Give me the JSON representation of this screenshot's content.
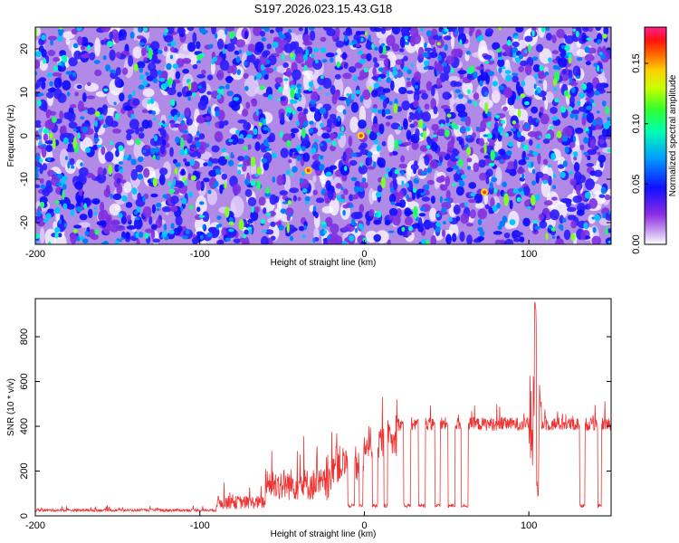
{
  "chart_data": [
    {
      "type": "heatmap",
      "title": "S197.2026.023.15.43.G18",
      "xlabel": "Height of straight line (km)",
      "ylabel": "Frequency (Hz)",
      "xlim": [
        -200,
        150
      ],
      "ylim": [
        -25,
        25
      ],
      "x_ticks": [
        -200,
        -100,
        0,
        100
      ],
      "x_tick_labels": [
        "-200",
        "-100",
        "0",
        "100"
      ],
      "y_ticks": [
        -20,
        -10,
        0,
        10,
        20
      ],
      "y_tick_labels": [
        "-20",
        "-10",
        "0",
        "10",
        "20"
      ],
      "colorbar": {
        "label": "Normalized spectral amplitude",
        "range": [
          0,
          0.18
        ],
        "ticks": [
          0.0,
          0.05,
          0.1,
          0.15
        ],
        "tick_labels": [
          "0.00",
          "0.05",
          "0.10",
          "0.15"
        ],
        "colors": [
          "#ffffff",
          "#8a2be2",
          "#0000ff",
          "#00bfff",
          "#00ff7f",
          "#7fff00",
          "#ffff00",
          "#ff8c00",
          "#ff0000",
          "#ff1493"
        ]
      },
      "grid": false,
      "legend": "none"
    },
    {
      "type": "line",
      "xlabel": "Height of straight line (km)",
      "ylabel": "SNR (10 * v/v)",
      "xlim": [
        -200,
        150
      ],
      "ylim": [
        0,
        970
      ],
      "x_ticks": [
        -200,
        -100,
        0,
        100
      ],
      "x_tick_labels": [
        "-200",
        "-100",
        "0",
        "100"
      ],
      "y_ticks": [
        0,
        200,
        400,
        600,
        800
      ],
      "y_tick_labels": [
        "0",
        "200",
        "400",
        "600",
        "800"
      ],
      "line_color": "#ee3333",
      "segments": [
        {
          "x_start": -200,
          "x_end": -90,
          "level": 25,
          "noise": 10
        },
        {
          "x_start": -90,
          "x_end": -60,
          "level": 60,
          "noise": 50
        },
        {
          "x_start": -60,
          "x_end": -20,
          "level": 140,
          "noise": 120
        },
        {
          "x_start": -20,
          "x_end": 0,
          "level": 230,
          "noise": 140
        },
        {
          "x_start": 0,
          "x_end": 20,
          "level": 330,
          "noise": 120
        },
        {
          "x_start": 20,
          "x_end": 150,
          "level": 410,
          "noise": 50
        }
      ],
      "dropouts": [
        [
          -10,
          -6
        ],
        [
          -3,
          -1
        ],
        [
          5,
          8
        ],
        [
          12,
          14
        ],
        [
          24,
          28
        ],
        [
          33,
          37
        ],
        [
          43,
          46
        ],
        [
          51,
          55
        ],
        [
          59,
          63
        ],
        [
          131,
          134
        ],
        [
          142,
          144
        ]
      ],
      "dropout_level": 45,
      "spike": {
        "x": 104,
        "peak": 970,
        "trough": 80
      },
      "legend": "none"
    }
  ]
}
